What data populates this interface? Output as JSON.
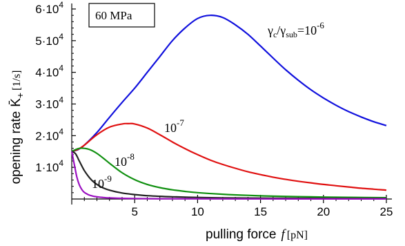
{
  "chart_data": {
    "type": "line",
    "annotation_box": "60 MPa",
    "xlabel_text": "pulling force",
    "xlabel_symbol": "f",
    "xlabel_unit": "[pN]",
    "ylabel_text": "opening rate",
    "ylabel_symbol": "K̄",
    "ylabel_subscript": "+",
    "ylabel_unit": "[1/s]",
    "xlim": [
      0,
      25
    ],
    "ylim": [
      0,
      60000
    ],
    "xticks": [
      {
        "value": 5,
        "label": "5"
      },
      {
        "value": 10,
        "label": "10"
      },
      {
        "value": 15,
        "label": "15"
      },
      {
        "value": 20,
        "label": "20"
      },
      {
        "value": 25,
        "label": "25"
      }
    ],
    "yticks": [
      {
        "value": 10000,
        "mant": "1·10",
        "exp": "4"
      },
      {
        "value": 20000,
        "mant": "2·10",
        "exp": "4"
      },
      {
        "value": 30000,
        "mant": "3·10",
        "exp": "4"
      },
      {
        "value": 40000,
        "mant": "4·10",
        "exp": "4"
      },
      {
        "value": 50000,
        "mant": "5·10",
        "exp": "4"
      },
      {
        "value": 60000,
        "mant": "6·10",
        "exp": "4"
      }
    ],
    "grid": false,
    "legend": "none",
    "series": [
      {
        "label_base": "γc/γsub=10",
        "label_exp": "-6",
        "color": "#1010dd",
        "x": [
          0,
          0.5,
          1,
          2,
          3,
          4,
          5,
          6,
          7,
          8,
          9,
          10,
          11,
          12,
          13,
          14,
          15,
          16,
          17,
          18,
          19,
          20,
          21,
          22,
          23,
          24,
          25
        ],
        "y": [
          15000,
          15600,
          17000,
          21000,
          25800,
          30500,
          35000,
          40000,
          45000,
          50000,
          54000,
          57000,
          58000,
          57300,
          55000,
          52000,
          48300,
          44500,
          40800,
          37500,
          34500,
          31900,
          29600,
          27600,
          25900,
          24400,
          23200
        ]
      },
      {
        "label_base": "10",
        "label_exp": "-7",
        "color": "#e01010",
        "x": [
          0,
          0.5,
          1,
          2,
          3,
          4,
          4.5,
          5,
          6,
          7,
          8,
          9,
          10,
          11,
          12,
          13,
          14,
          15,
          16,
          17,
          18,
          19,
          20,
          21,
          22,
          23,
          24,
          25
        ],
        "y": [
          15000,
          15700,
          17000,
          20300,
          22700,
          23700,
          23800,
          23700,
          22400,
          20300,
          18000,
          15900,
          14000,
          12300,
          10900,
          9700,
          8600,
          7700,
          6900,
          6200,
          5600,
          5100,
          4600,
          4200,
          3800,
          3400,
          3100,
          2800
        ]
      },
      {
        "label_base": "10",
        "label_exp": "-8",
        "color": "#109010",
        "x": [
          0,
          0.3,
          0.6,
          1,
          1.5,
          2,
          2.5,
          3,
          4,
          5,
          6,
          7,
          8,
          9,
          10,
          12,
          14,
          16,
          18,
          20,
          22,
          25
        ],
        "y": [
          15000,
          15600,
          16000,
          16000,
          15500,
          14400,
          12900,
          11300,
          8300,
          6100,
          4600,
          3600,
          2900,
          2400,
          2000,
          1500,
          1150,
          900,
          750,
          620,
          520,
          420
        ]
      },
      {
        "label_base": "10",
        "label_exp": "-9",
        "color": "#222222",
        "x": [
          0,
          0.3,
          0.6,
          1,
          1.5,
          2,
          2.5,
          3,
          3.5,
          4,
          5,
          6,
          7,
          8,
          10,
          12,
          15,
          18,
          20,
          22,
          25
        ],
        "y": [
          15000,
          14300,
          12000,
          9000,
          6300,
          4600,
          3500,
          2800,
          2300,
          1900,
          1400,
          1050,
          850,
          700,
          500,
          380,
          280,
          220,
          190,
          170,
          150
        ]
      },
      {
        "label_base": "",
        "label_exp": "",
        "color": "#9a10c0",
        "x": [
          0,
          0.2,
          0.4,
          0.6,
          0.8,
          1,
          1.3,
          1.6,
          2,
          2.5,
          3,
          4,
          5,
          7,
          10,
          15,
          20,
          25
        ],
        "y": [
          15000,
          11000,
          7000,
          4500,
          3000,
          2100,
          1400,
          1000,
          700,
          480,
          350,
          220,
          150,
          90,
          60,
          40,
          30,
          25
        ]
      }
    ]
  }
}
